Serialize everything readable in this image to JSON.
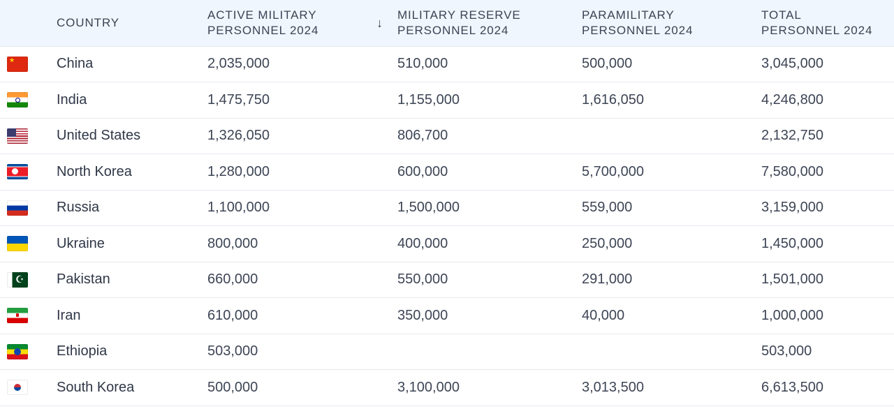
{
  "table": {
    "headers": {
      "country": "COUNTRY",
      "active": [
        "ACTIVE MILITARY",
        "PERSONNEL 2024"
      ],
      "reserve": [
        "MILITARY RESERVE",
        "PERSONNEL 2024"
      ],
      "paramilitary": [
        "PARAMILITARY",
        "PERSONNEL 2024"
      ],
      "total": [
        "TOTAL",
        "PERSONNEL 2024"
      ],
      "sort_icon": "↓"
    },
    "rows": [
      {
        "flag_icon": "china-flag-icon",
        "country": "China",
        "active": "2,035,000",
        "reserve": "510,000",
        "paramilitary": "500,000",
        "total": "3,045,000"
      },
      {
        "flag_icon": "india-flag-icon",
        "country": "India",
        "active": "1,475,750",
        "reserve": "1,155,000",
        "paramilitary": "1,616,050",
        "total": "4,246,800"
      },
      {
        "flag_icon": "united-states-flag-icon",
        "country": "United States",
        "active": "1,326,050",
        "reserve": "806,700",
        "paramilitary": "",
        "total": "2,132,750"
      },
      {
        "flag_icon": "north-korea-flag-icon",
        "country": "North Korea",
        "active": "1,280,000",
        "reserve": "600,000",
        "paramilitary": "5,700,000",
        "total": "7,580,000"
      },
      {
        "flag_icon": "russia-flag-icon",
        "country": "Russia",
        "active": "1,100,000",
        "reserve": "1,500,000",
        "paramilitary": "559,000",
        "total": "3,159,000"
      },
      {
        "flag_icon": "ukraine-flag-icon",
        "country": "Ukraine",
        "active": "800,000",
        "reserve": "400,000",
        "paramilitary": "250,000",
        "total": "1,450,000"
      },
      {
        "flag_icon": "pakistan-flag-icon",
        "country": "Pakistan",
        "active": "660,000",
        "reserve": "550,000",
        "paramilitary": "291,000",
        "total": "1,501,000"
      },
      {
        "flag_icon": "iran-flag-icon",
        "country": "Iran",
        "active": "610,000",
        "reserve": "350,000",
        "paramilitary": "40,000",
        "total": "1,000,000"
      },
      {
        "flag_icon": "ethiopia-flag-icon",
        "country": "Ethiopia",
        "active": "503,000",
        "reserve": "",
        "paramilitary": "",
        "total": "503,000"
      },
      {
        "flag_icon": "south-korea-flag-icon",
        "country": "South Korea",
        "active": "500,000",
        "reserve": "3,100,000",
        "paramilitary": "3,013,500",
        "total": "6,613,500"
      }
    ]
  },
  "colors": {
    "header_background": "#f0f6fd",
    "row_border": "#e6e9ef",
    "text": "#3d4555"
  }
}
